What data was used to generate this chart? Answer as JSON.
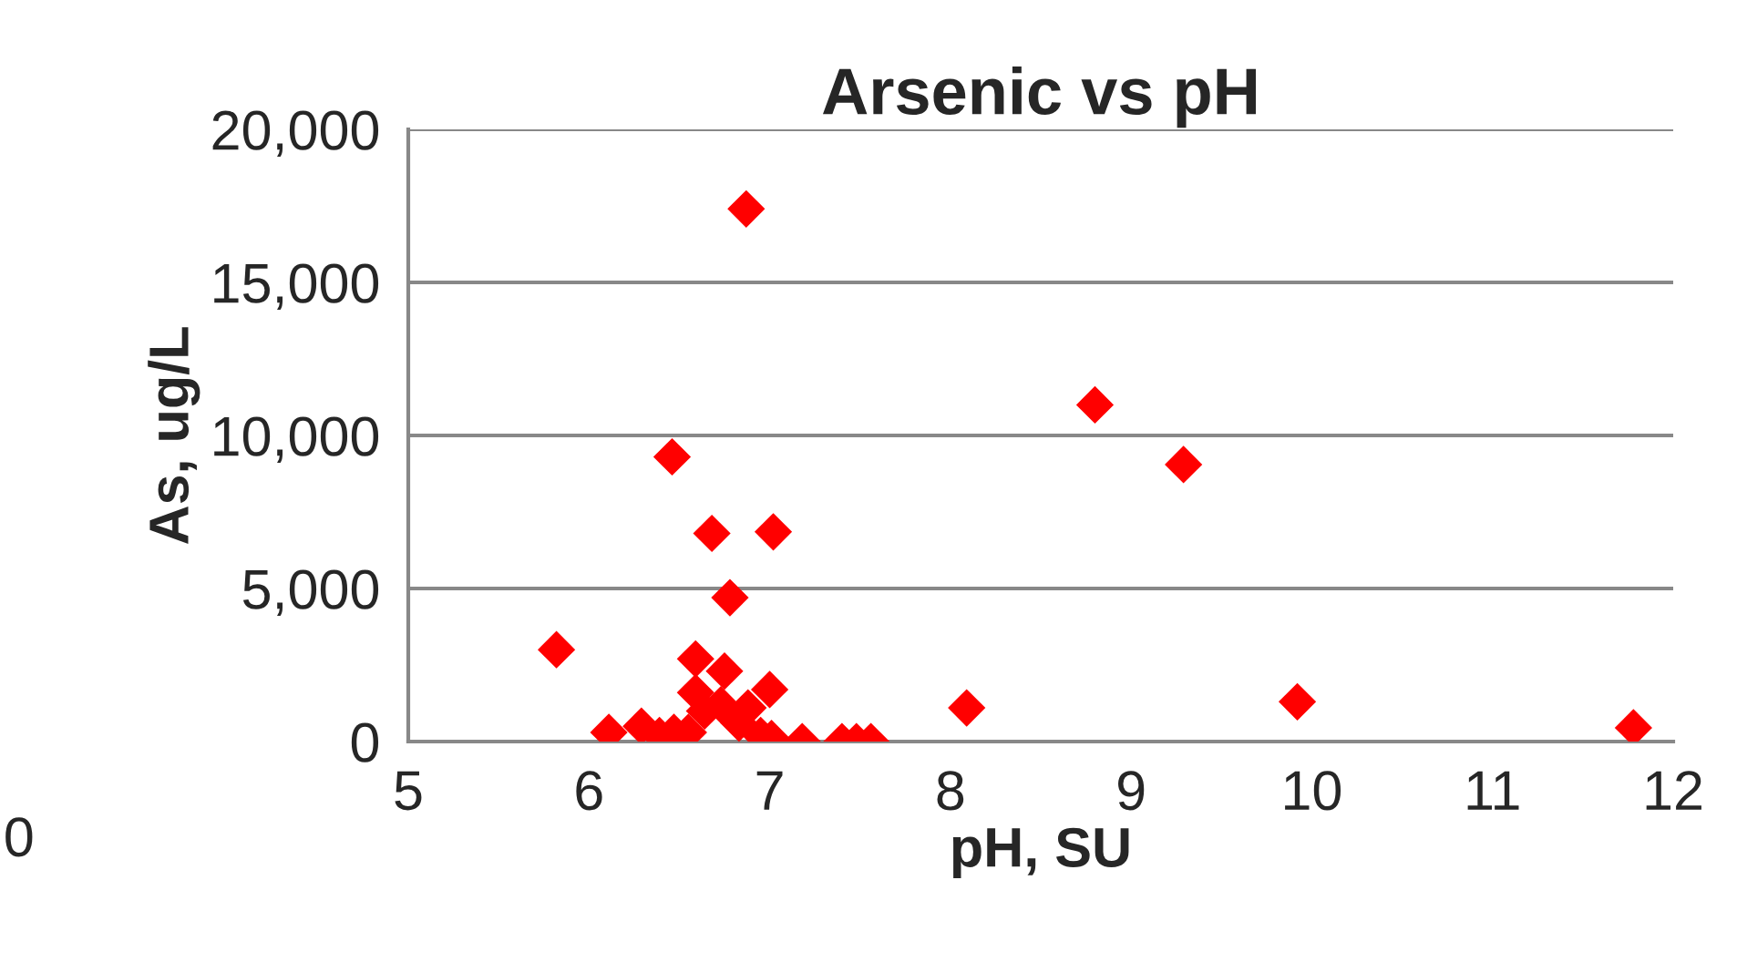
{
  "chart_data": {
    "type": "scatter",
    "title": "Arsenic vs pH",
    "xlabel": "pH, SU",
    "ylabel": "As, ug/L",
    "series": [
      {
        "color": "#ff0000",
        "x": [
          5.82,
          6.87,
          6.46,
          6.68,
          7.02,
          6.78,
          8.8,
          9.29,
          8.09,
          9.92,
          11.78,
          6.59,
          6.75,
          7.0,
          6.59,
          6.64,
          6.88,
          6.11,
          6.29,
          6.39,
          6.47,
          6.55,
          6.95,
          7.01,
          7.18,
          7.4,
          7.48,
          7.56,
          6.83,
          6.73
        ],
        "values": [
          3000,
          17400,
          9300,
          6800,
          6850,
          4700,
          11000,
          9050,
          1100,
          1300,
          450,
          2700,
          2300,
          1700,
          1600,
          1000,
          1100,
          300,
          500,
          200,
          300,
          300,
          200,
          100,
          0,
          0,
          0,
          0,
          600,
          1200
        ]
      }
    ],
    "marker": "diamond",
    "xlim": [
      5,
      12
    ],
    "xticks": [
      5,
      6,
      7,
      8,
      9,
      10,
      11,
      12
    ],
    "ylim": [
      0,
      20000
    ],
    "yticks": [
      {
        "value": 0,
        "label": "0"
      },
      {
        "value": 5000,
        "label": "5,000"
      },
      {
        "value": 10000,
        "label": "10,000"
      },
      {
        "value": 15000,
        "label": "15,000"
      },
      {
        "value": 20000,
        "label": "20,000"
      }
    ],
    "grid": "y",
    "annotations": [
      "0"
    ]
  }
}
